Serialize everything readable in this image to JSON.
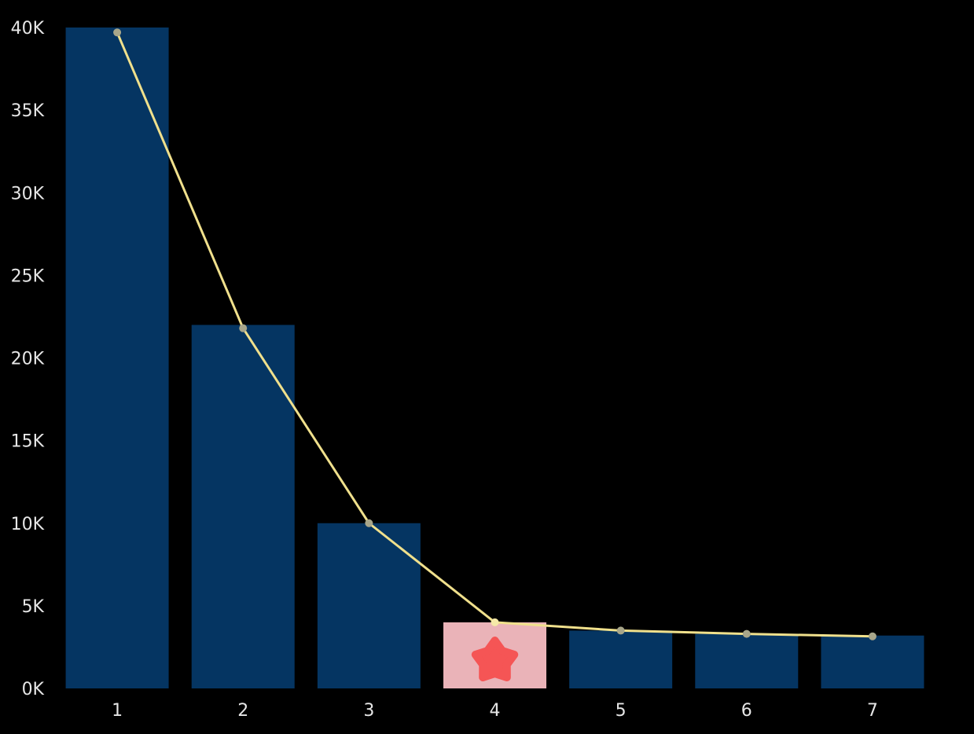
{
  "chart_data": {
    "type": "bar",
    "categories": [
      "1",
      "2",
      "3",
      "4",
      "5",
      "6",
      "7"
    ],
    "series": [
      {
        "type": "bar",
        "values": [
          40000,
          22000,
          10000,
          4000,
          3500,
          3300,
          3200
        ]
      },
      {
        "type": "line",
        "values": [
          39700,
          21800,
          10000,
          4000,
          3500,
          3300,
          3150
        ]
      }
    ],
    "y_ticks": [
      "0K",
      "5K",
      "10K",
      "15K",
      "20K",
      "25K",
      "30K",
      "35K",
      "40K"
    ],
    "ylim": [
      0,
      40000
    ],
    "grid": false,
    "legend": "none",
    "highlighted_category": "4",
    "colors": {
      "bar": "#053562",
      "bar_highlight": "#eab3b8",
      "line": "#f0e08c",
      "marker": "#f55555",
      "background": "#000000",
      "text": "#e6e6e6"
    },
    "marker_icon": "star-icon"
  }
}
